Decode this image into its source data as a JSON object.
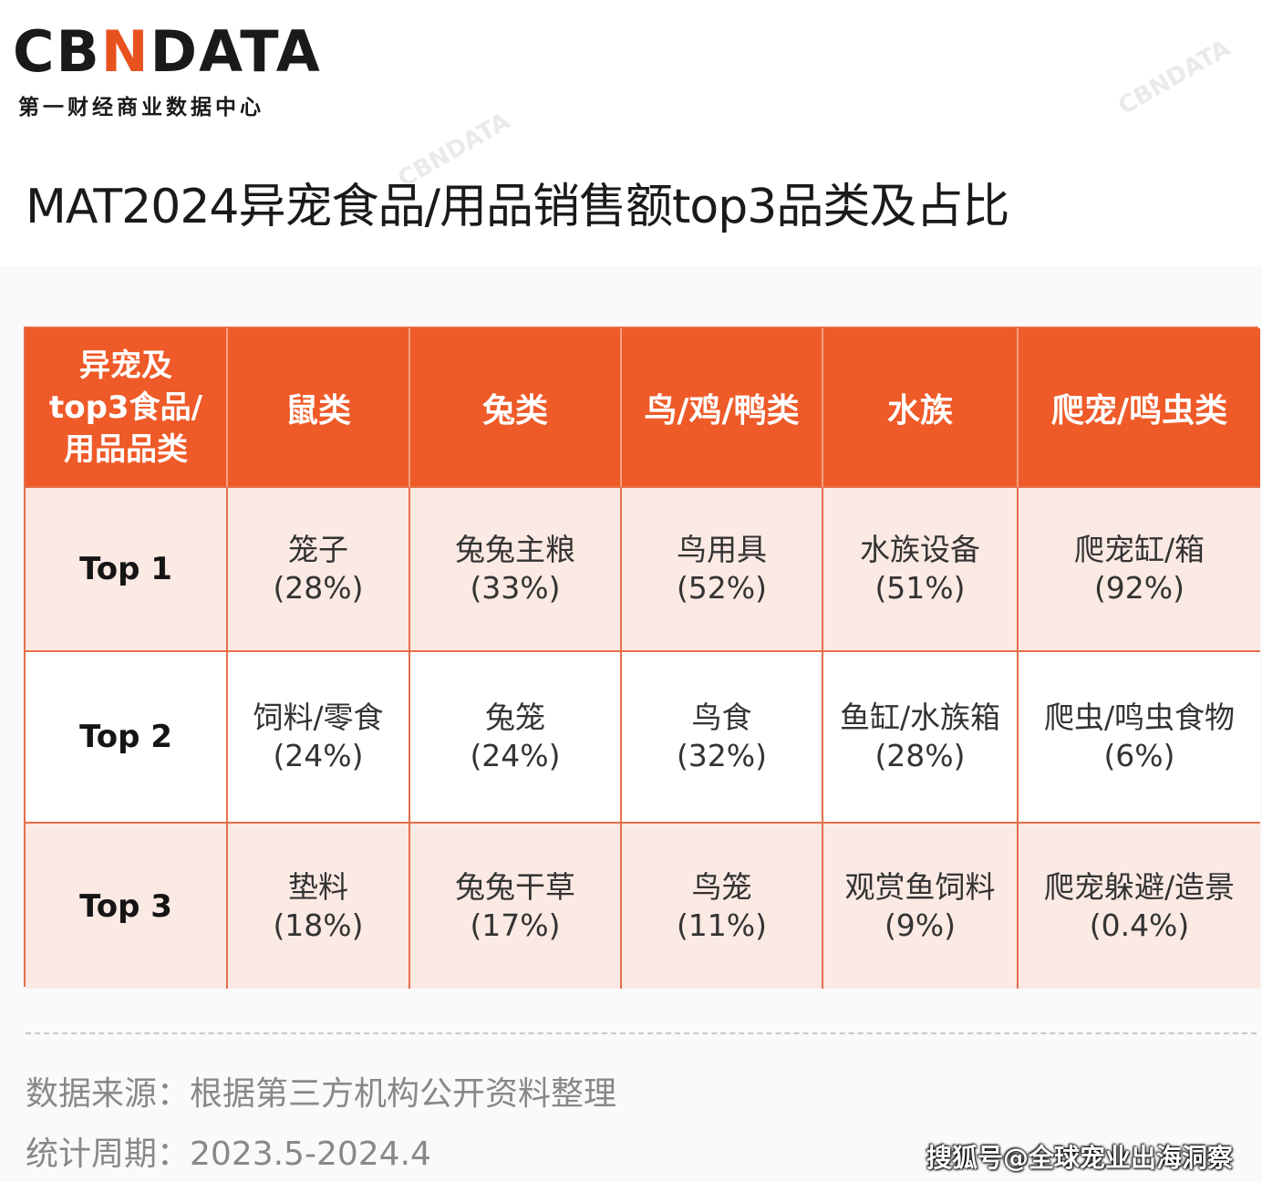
{
  "brand": {
    "logo_prefix": "CB",
    "logo_mark": "N",
    "logo_suffix": "DATA",
    "tagline": "第一财经商业数据中心",
    "accent_color": "#ee5a28"
  },
  "title": "MAT2024异宠食品/用品销售额top3品类及占比",
  "chart_data": {
    "type": "table",
    "corner_header": [
      "异宠及",
      "top3食品/",
      "用品品类"
    ],
    "columns": [
      "鼠类",
      "兔类",
      "鸟/鸡/鸭类",
      "水族",
      "爬宠/鸣虫类"
    ],
    "rows": [
      {
        "rank": "Top 1",
        "cells": [
          {
            "name": "笼子",
            "pct": "(28%)"
          },
          {
            "name": "兔兔主粮",
            "pct": "(33%)"
          },
          {
            "name": "鸟用具",
            "pct": "(52%)"
          },
          {
            "name": "水族设备",
            "pct": "(51%)"
          },
          {
            "name": "爬宠缸/箱",
            "pct": "(92%)"
          }
        ]
      },
      {
        "rank": "Top 2",
        "cells": [
          {
            "name": "饲料/零食",
            "pct": "(24%)"
          },
          {
            "name": "兔笼",
            "pct": "(24%)"
          },
          {
            "name": "鸟食",
            "pct": "(32%)"
          },
          {
            "name": "鱼缸/水族箱",
            "pct": "(28%)"
          },
          {
            "name": "爬虫/鸣虫食物",
            "pct": "(6%)"
          }
        ]
      },
      {
        "rank": "Top 3",
        "cells": [
          {
            "name": "垫料",
            "pct": "(18%)"
          },
          {
            "name": "兔兔干草",
            "pct": "(17%)"
          },
          {
            "name": "鸟笼",
            "pct": "(11%)"
          },
          {
            "name": "观赏鱼饲料",
            "pct": "(9%)"
          },
          {
            "name": "爬宠躲避/造景",
            "pct": "(0.4%)"
          }
        ]
      }
    ]
  },
  "footer": {
    "source": "数据来源：根据第三方机构公开资料整理",
    "period": "统计周期：2023.5-2024.4",
    "watermark": "搜狐号@全球宠业出海洞察"
  }
}
